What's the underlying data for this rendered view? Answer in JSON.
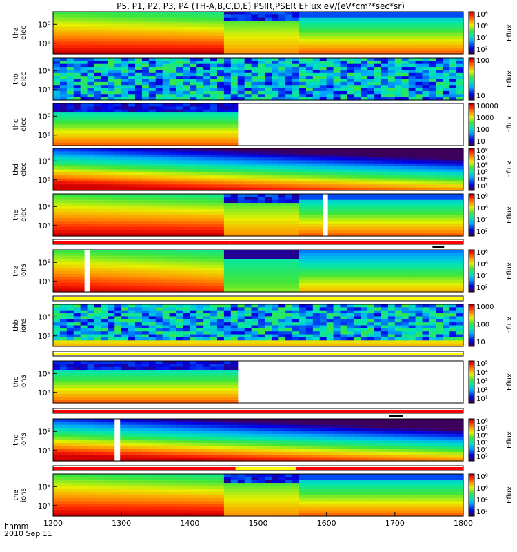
{
  "chart_data": {
    "type": "heatmap",
    "title": "P5, P1, P2, P3, P4 (TH-A,B,C,D,E) PSIR,PSER EFlux eV/(eV*cm²*sec*sr)",
    "x_axis": {
      "ticks": [
        "1200",
        "1300",
        "1400",
        "1500",
        "1600",
        "1700",
        "1800"
      ],
      "label": "hhmm",
      "date_label": "2010 Sep 11",
      "range": [
        1200,
        1800
      ]
    },
    "colorbar_label": "Eflux",
    "panels": [
      {
        "id": "tha-elec",
        "ylabel": [
          "tha",
          "elec"
        ],
        "yticks": [
          "10⁶",
          "10⁵"
        ],
        "cbticks": [
          "10⁸",
          "10⁶",
          "10⁴",
          "10²"
        ],
        "pattern": "gradient-break",
        "breaks": [
          1450,
          1560
        ]
      },
      {
        "id": "thb-elec",
        "ylabel": [
          "thb",
          "elec"
        ],
        "yticks": [
          "10⁶",
          "10⁵"
        ],
        "cbticks": [
          "100",
          "10"
        ],
        "pattern": "noise"
      },
      {
        "id": "thc-elec",
        "ylabel": [
          "thc",
          "elec"
        ],
        "yticks": [
          "10⁶",
          "10⁵"
        ],
        "cbticks": [
          "10000",
          "1000",
          "100",
          "10"
        ],
        "pattern": "bands-end",
        "end": 1467
      },
      {
        "id": "thd-elec",
        "ylabel": [
          "thd",
          "elec"
        ],
        "yticks": [
          "10⁶",
          "10⁵"
        ],
        "cbticks": [
          "10⁸",
          "10⁷",
          "10⁶",
          "10⁵",
          "10⁴",
          "10³"
        ],
        "pattern": "diagonal"
      },
      {
        "id": "the-elec",
        "ylabel": [
          "the",
          "elec"
        ],
        "yticks": [
          "10⁶",
          "10⁵"
        ],
        "cbticks": [
          "10⁸",
          "10⁶",
          "10⁴",
          "10²"
        ],
        "pattern": "gradient-break",
        "breaks": [
          1450,
          1560
        ],
        "gap": [
          1595,
          1602
        ]
      },
      {
        "id": "tha-ions",
        "ylabel": [
          "tha",
          "ions"
        ],
        "yticks": [
          "10⁶",
          "10⁵"
        ],
        "cbticks": [
          "10⁸",
          "10⁶",
          "10⁴",
          "10²"
        ],
        "pattern": "ions-break",
        "breaks": [
          1450,
          1560
        ],
        "gap": [
          1246,
          1254
        ]
      },
      {
        "id": "thb-ions",
        "ylabel": [
          "thb",
          "ions"
        ],
        "yticks": [
          "10⁶",
          "10⁵"
        ],
        "cbticks": [
          "1000",
          "100",
          "10"
        ],
        "pattern": "noise-ions"
      },
      {
        "id": "thc-ions",
        "ylabel": [
          "thc",
          "ions"
        ],
        "yticks": [
          "10⁶",
          "10⁵"
        ],
        "cbticks": [
          "10⁵",
          "10⁴",
          "10³",
          "10²",
          "10¹"
        ],
        "pattern": "bands-end",
        "end": 1467
      },
      {
        "id": "thd-ions",
        "ylabel": [
          "thd",
          "ions"
        ],
        "yticks": [
          "10⁶",
          "10⁵"
        ],
        "cbticks": [
          "10⁸",
          "10⁷",
          "10⁶",
          "10⁵",
          "10⁴",
          "10³"
        ],
        "pattern": "diagonal",
        "gap": [
          1290,
          1298
        ]
      },
      {
        "id": "the-ions",
        "ylabel": [
          "the",
          "ions"
        ],
        "yticks": [
          "10⁶",
          "10⁵"
        ],
        "cbticks": [
          "10⁸",
          "10⁶",
          "10⁴",
          "10²"
        ],
        "pattern": "gradient-break",
        "breaks": [
          1450,
          1560
        ]
      }
    ],
    "status_bars": [
      {
        "segments": [
          {
            "from": 1200,
            "to": 1458,
            "color": "#ff0000"
          },
          {
            "from": 1458,
            "to": 1553,
            "color": "#ff0000"
          },
          {
            "from": 1553,
            "to": 1800,
            "color": "#ff0000"
          }
        ],
        "marker": [
          1755,
          1772
        ]
      },
      {
        "segments": [
          {
            "from": 1200,
            "to": 1800,
            "color": "#ffff00"
          }
        ]
      },
      {
        "segments": [
          {
            "from": 1200,
            "to": 1800,
            "color": "#ffff00"
          }
        ]
      },
      {
        "segments": [
          {
            "from": 1200,
            "to": 1800,
            "color": "#ff0000"
          }
        ],
        "marker": [
          1692,
          1712
        ]
      },
      {
        "segments": [
          {
            "from": 1200,
            "to": 1467,
            "color": "#ff0000"
          },
          {
            "from": 1467,
            "to": 1556,
            "color": "#ffff00"
          },
          {
            "from": 1556,
            "to": 1800,
            "color": "#ff0000"
          }
        ]
      }
    ]
  }
}
